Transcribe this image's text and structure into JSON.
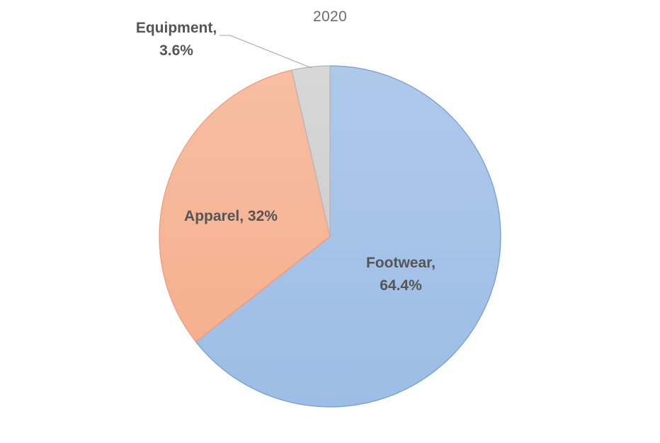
{
  "chart_data": {
    "type": "pie",
    "title": "2020",
    "categories": [
      "Footwear",
      "Apparel",
      "Equipment"
    ],
    "values": [
      64.4,
      32,
      3.6
    ],
    "value_labels": [
      "64.4%",
      "32%",
      "3.6%"
    ],
    "colors": [
      "#9dbde6",
      "#f5b08f",
      "#cfcfcf"
    ],
    "edge_colors": [
      "#6f9bd3",
      "#ef9a72",
      "#b5b5b5"
    ],
    "legend": "none",
    "start_angle_deg": 0,
    "direction": "clockwise"
  }
}
